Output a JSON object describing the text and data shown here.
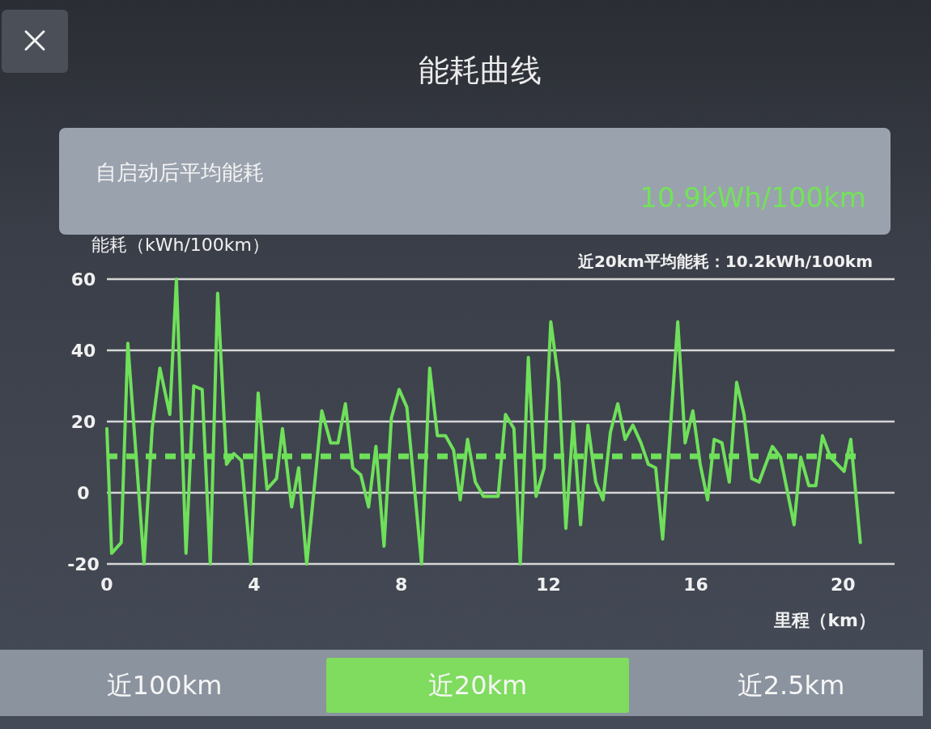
{
  "chart_data": {
    "type": "line",
    "title": "能耗曲线",
    "xlabel": "里程（km）",
    "ylabel": "能耗（kWh/100km）",
    "annotations": [
      "自启动后平均能耗",
      "10.9kWh/100km",
      "近20km平均能耗：10.2kWh/100km",
      "近100km",
      "近20km",
      "近2.5km"
    ],
    "x": [
      0,
      0.13,
      0.39,
      0.57,
      1.01,
      1.23,
      1.44,
      1.71,
      1.89,
      2.15,
      2.36,
      2.59,
      2.81,
      3.01,
      3.25,
      3.45,
      3.66,
      3.91,
      4.11,
      4.35,
      4.61,
      4.77,
      5.02,
      5.21,
      5.43,
      5.84,
      6.08,
      6.28,
      6.48,
      6.68,
      6.9,
      7.11,
      7.31,
      7.53,
      7.73,
      7.94,
      8.15,
      8.55,
      8.77,
      8.98,
      9.2,
      9.42,
      9.6,
      9.8,
      10.01,
      10.23,
      10.63,
      10.83,
      11.06,
      11.23,
      11.45,
      11.66,
      11.88,
      12.06,
      12.28,
      12.47,
      12.67,
      12.87,
      13.07,
      13.28,
      13.48,
      13.68,
      13.88,
      14.08,
      14.29,
      14.51,
      14.71,
      14.91,
      15.1,
      15.51,
      15.71,
      15.92,
      16.12,
      16.32,
      16.5,
      16.71,
      16.91,
      17.11,
      17.31,
      17.52,
      17.72,
      18.08,
      18.3,
      18.67,
      18.85,
      19.07,
      19.26,
      19.44,
      19.66,
      20.03,
      20.21,
      20.47
    ],
    "series": [
      {
        "color": "#6fe05a",
        "values": [
          18,
          -17,
          -14,
          42,
          -20,
          18,
          35,
          22,
          60,
          -17,
          30,
          29,
          -20,
          56,
          8,
          11,
          9,
          -20,
          28,
          1,
          4,
          18,
          -4,
          7,
          -20,
          23,
          14,
          14,
          25,
          7,
          5,
          -4,
          13,
          -15,
          21,
          29,
          24,
          -20,
          35,
          16,
          16,
          12,
          -2,
          15,
          3,
          -1,
          -1,
          22,
          18,
          -20,
          38,
          -1,
          7,
          48,
          31,
          -10,
          20,
          -9,
          19,
          3,
          -2,
          17,
          25,
          15,
          19,
          14,
          8,
          7,
          -13,
          48,
          14,
          23,
          8,
          -2,
          15,
          14,
          3,
          31,
          22,
          4,
          3,
          13,
          10,
          -9,
          10,
          2,
          2,
          16,
          10,
          6,
          15,
          -14
        ]
      }
    ],
    "xlim": [
      0,
      21.4
    ],
    "ylim": [
      -20,
      60
    ],
    "xticks": [
      0,
      4,
      8,
      12,
      16,
      20
    ],
    "yticks": [
      -20,
      0,
      20,
      40,
      60
    ],
    "grid": "y",
    "ref_lines": [
      {
        "axis": "y",
        "value": 10.2,
        "color": "#6fe05a",
        "line_style": "dashed"
      }
    ]
  }
}
